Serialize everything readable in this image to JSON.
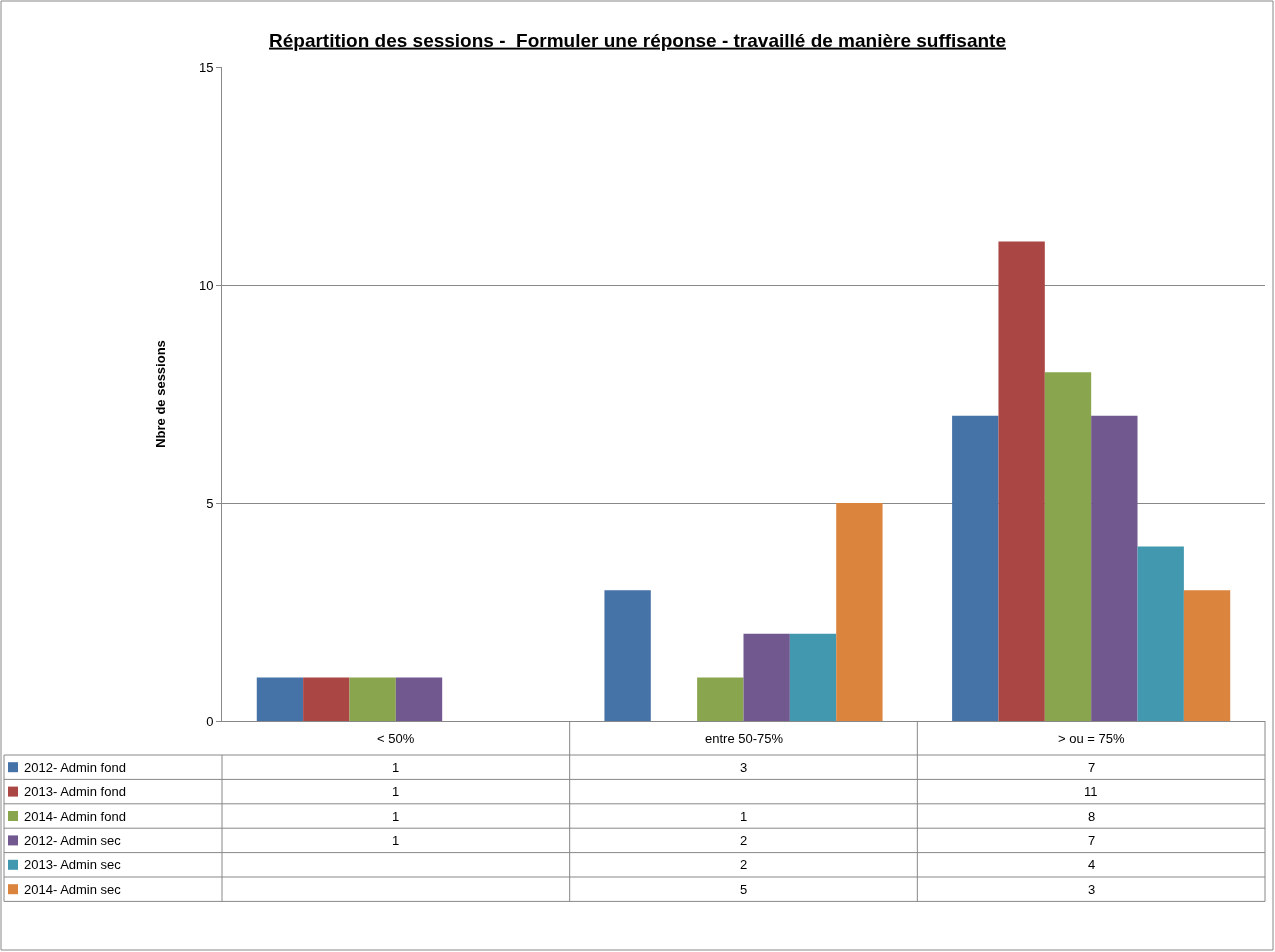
{
  "chart_data": {
    "type": "bar",
    "title": "Répartition des sessions -  Formuler une réponse - travaillé de manière suffisante",
    "ylabel": "Nbre de sessions",
    "categories": [
      "< 50%",
      "entre 50-75%",
      "> ou = 75%"
    ],
    "series": [
      {
        "name": "2012- Admin fond",
        "color": "#4572a7",
        "values": [
          1,
          3,
          7
        ]
      },
      {
        "name": "2013- Admin fond",
        "color": "#aa4643",
        "values": [
          1,
          null,
          11
        ]
      },
      {
        "name": "2014- Admin fond",
        "color": "#89a54e",
        "values": [
          1,
          1,
          8
        ]
      },
      {
        "name": "2012- Admin sec",
        "color": "#71588f",
        "values": [
          1,
          2,
          7
        ]
      },
      {
        "name": "2013- Admin sec",
        "color": "#4198af",
        "values": [
          null,
          2,
          4
        ]
      },
      {
        "name": "2014- Admin sec",
        "color": "#db843d",
        "values": [
          null,
          5,
          3
        ]
      }
    ],
    "ylim": [
      0,
      15
    ],
    "yticks": [
      0,
      5,
      10,
      15
    ],
    "grid": "y",
    "legend": "bottom left",
    "data_labels": true
  }
}
